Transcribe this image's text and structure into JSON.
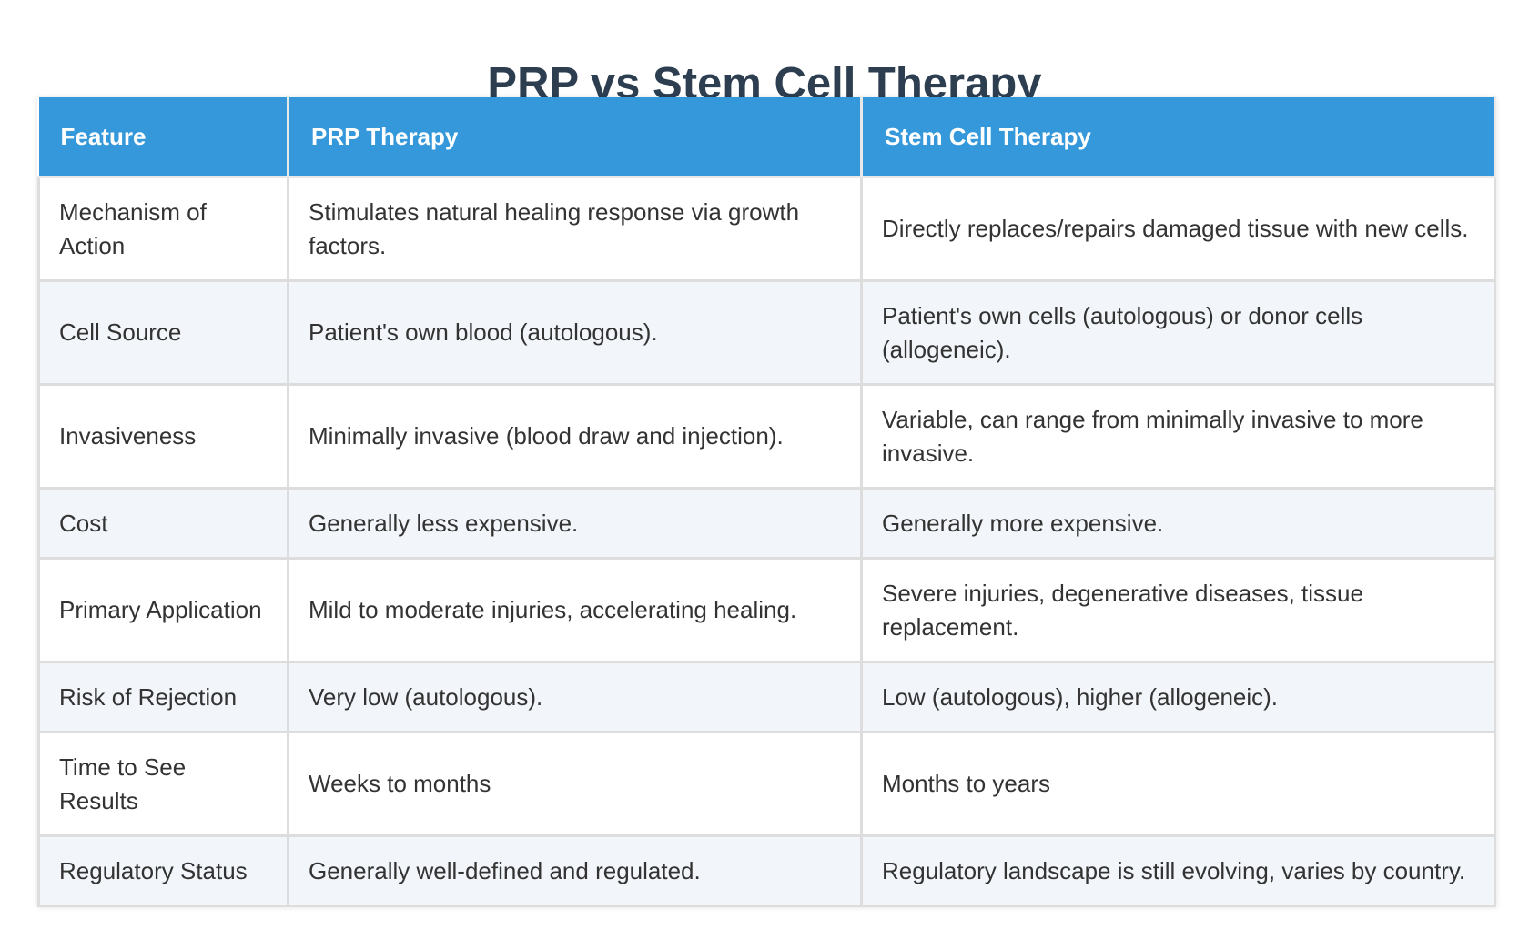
{
  "title": "PRP vs Stem Cell Therapy",
  "table": {
    "headers": [
      "Feature",
      "PRP Therapy",
      "Stem Cell Therapy"
    ],
    "rows": [
      [
        "Mechanism of Action",
        "Stimulates natural healing response via growth factors.",
        "Directly replaces/repairs damaged tissue with new cells."
      ],
      [
        "Cell Source",
        "Patient's own blood (autologous).",
        "Patient's own cells (autologous) or donor cells (allogeneic)."
      ],
      [
        "Invasiveness",
        "Minimally invasive (blood draw and injection).",
        "Variable, can range from minimally invasive to more invasive."
      ],
      [
        "Cost",
        "Generally less expensive.",
        "Generally more expensive."
      ],
      [
        "Primary Application",
        "Mild to moderate injuries, accelerating healing.",
        "Severe injuries, degenerative diseases, tissue replacement."
      ],
      [
        "Risk of Rejection",
        "Very low (autologous).",
        "Low (autologous), higher (allogeneic)."
      ],
      [
        "Time to See Results",
        "Weeks to months",
        "Months to years"
      ],
      [
        "Regulatory Status",
        "Generally well-defined and regulated.",
        "Regulatory landscape is still evolving, varies by country."
      ]
    ]
  }
}
